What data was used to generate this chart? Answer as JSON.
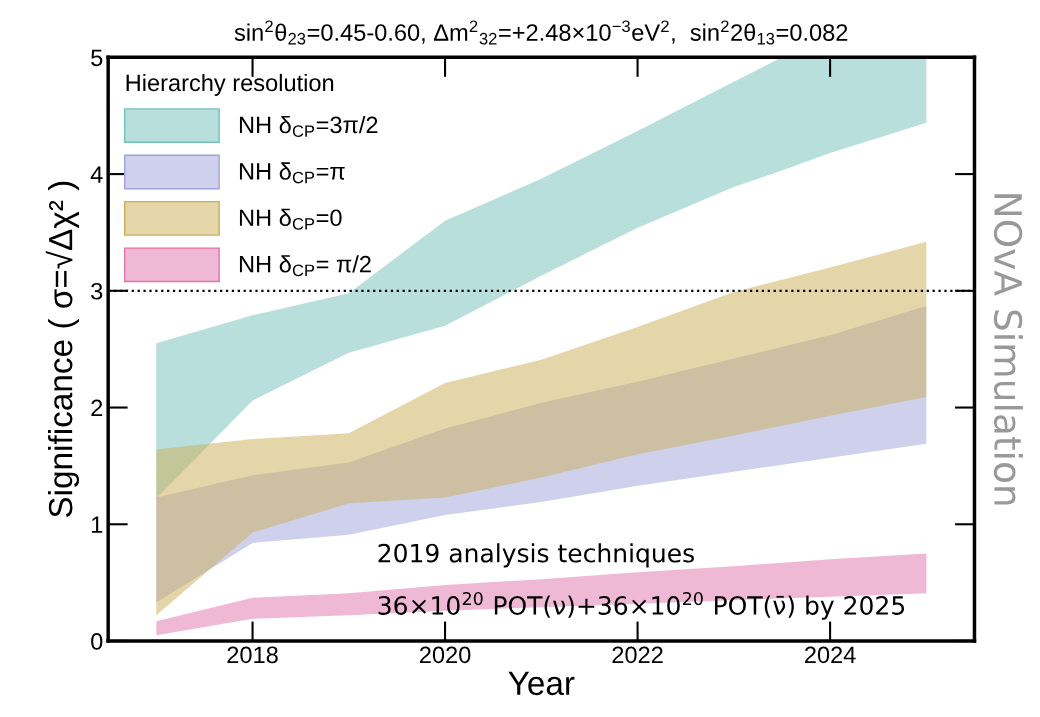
{
  "chart_data": {
    "type": "area",
    "title": "sin$^{2}$θ$_{23}$=0.45-0.60, Δm$^{2}$$_{32}$=+2.48×10$^{−3}$eV$^{2}$,  sin$^{2}$2θ$_{13}$=0.082",
    "xlabel": "Year",
    "ylabel": "Significance ( σ=√Δχ² )",
    "legend_title": "Hierarchy resolution",
    "series": [
      {
        "name": "NH δ$_{CP}$=3π/2",
        "color": "#b9dfdc",
        "x": [
          2017,
          2018,
          2019,
          2020,
          2021,
          2022,
          2023,
          2023.5,
          2024,
          2025
        ],
        "values": [
          null,
          null,
          null,
          null,
          null,
          null,
          null,
          null,
          null,
          null
        ],
        "lower": [
          1.22,
          2.06,
          2.47,
          2.7,
          3.13,
          3.54,
          3.89,
          4.03,
          4.18,
          4.44
        ],
        "upper": [
          2.55,
          2.79,
          2.98,
          3.6,
          3.96,
          4.37,
          4.79,
          5.0,
          5.0,
          5.0
        ]
      },
      {
        "name": "NH δ$_{CP}$=π",
        "color": "#cfd0ec",
        "x": [
          2017,
          2018,
          2019,
          2020,
          2021,
          2022,
          2023,
          2024,
          2025
        ],
        "values": [
          null,
          null,
          null,
          null,
          null,
          null,
          null,
          null,
          null
        ],
        "lower": [
          0.33,
          0.84,
          0.91,
          1.08,
          1.19,
          1.33,
          1.45,
          1.57,
          1.69
        ],
        "upper": [
          1.23,
          1.42,
          1.53,
          1.82,
          2.04,
          2.22,
          2.42,
          2.62,
          2.87
        ]
      },
      {
        "name": "NH δ$_{CP}$=0",
        "color": "#e5d6aa",
        "x": [
          2017,
          2018,
          2019,
          2020,
          2021,
          2022,
          2023,
          2024,
          2025
        ],
        "values": [
          null,
          null,
          null,
          null,
          null,
          null,
          null,
          null,
          null
        ],
        "lower": [
          0.22,
          0.93,
          1.18,
          1.23,
          1.4,
          1.6,
          1.76,
          1.93,
          2.09
        ],
        "upper": [
          1.64,
          1.73,
          1.78,
          2.21,
          2.41,
          2.69,
          2.99,
          3.2,
          3.42
        ]
      },
      {
        "name": "NH δ$_{CP}$= π/2",
        "color": "#efb9d5",
        "x": [
          2017,
          2018,
          2019,
          2020,
          2021,
          2022,
          2023,
          2024,
          2025
        ],
        "values": [
          null,
          null,
          null,
          null,
          null,
          null,
          null,
          null,
          null
        ],
        "lower": [
          0.05,
          0.19,
          0.22,
          0.26,
          0.29,
          0.32,
          0.35,
          0.38,
          0.41
        ],
        "upper": [
          0.17,
          0.37,
          0.41,
          0.48,
          0.53,
          0.59,
          0.64,
          0.7,
          0.75
        ]
      }
    ],
    "xlim": [
      2016.5,
      2025.5
    ],
    "xticks": [
      2018,
      2020,
      2022,
      2024
    ],
    "ylim": [
      0,
      5
    ],
    "yticks": [
      0,
      1,
      2,
      3,
      4,
      5
    ],
    "ref_lines": [
      {
        "axis": "y",
        "value": 3,
        "color": "#000000",
        "line_style": "dotted"
      }
    ],
    "annotations": [
      "2019 analysis techniques",
      "36×10$^{20}$ POT(ν)+36×10$^{20}$ POT(ν̄) by 2025",
      "NOvA Simulation"
    ],
    "legend": "top left",
    "grid": false
  }
}
